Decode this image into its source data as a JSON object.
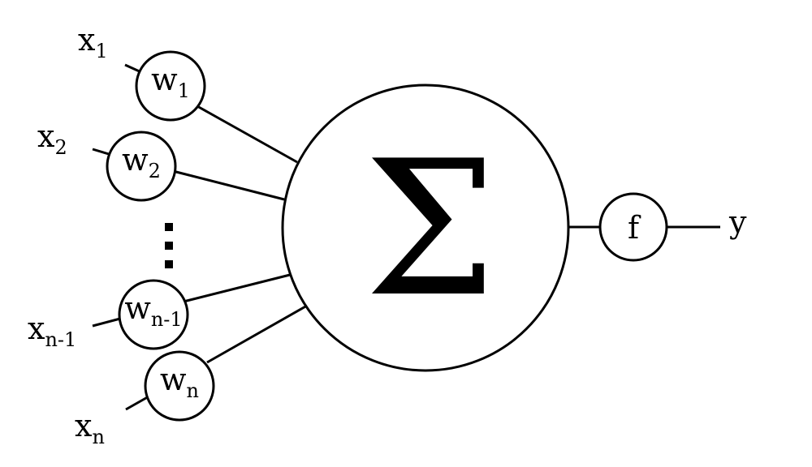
{
  "inputs": [
    {
      "x": "x",
      "x_sub": "1",
      "w": "w",
      "w_sub": "1"
    },
    {
      "x": "x",
      "x_sub": "2",
      "w": "w",
      "w_sub": "2"
    },
    {
      "x": "x",
      "x_sub": "n-1",
      "w": "w",
      "w_sub": "n-1"
    },
    {
      "x": "x",
      "x_sub": "n",
      "w": "w",
      "w_sub": "n"
    }
  ],
  "summation": {
    "symbol": "Σ"
  },
  "activation": {
    "label": "f"
  },
  "output": {
    "label": "y"
  }
}
